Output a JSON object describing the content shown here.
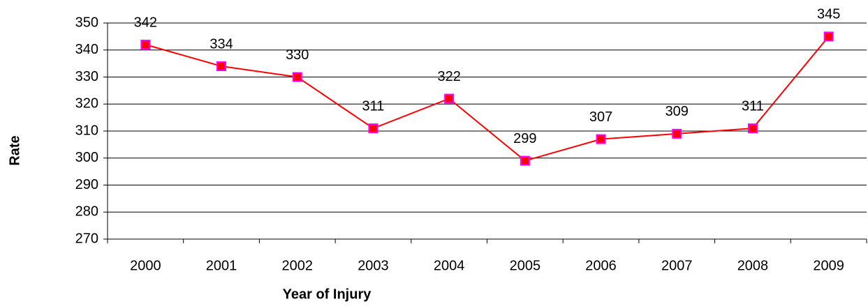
{
  "chart_data": {
    "type": "line",
    "x_label": "Year of Injury",
    "y_label": "Rate",
    "categories": [
      "2000",
      "2001",
      "2002",
      "2003",
      "2004",
      "2005",
      "2006",
      "2007",
      "2008",
      "2009"
    ],
    "values": [
      342,
      334,
      330,
      311,
      322,
      299,
      307,
      309,
      311,
      345
    ],
    "color": "#ff0000",
    "marker_edge_color": "#ff00ff",
    "ylim": [
      270,
      350
    ],
    "yticks": [
      270,
      280,
      290,
      300,
      310,
      320,
      330,
      340,
      350
    ],
    "grid": true
  }
}
